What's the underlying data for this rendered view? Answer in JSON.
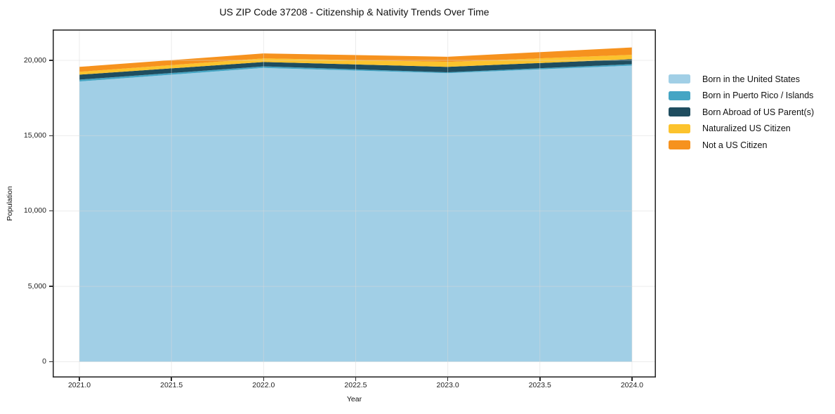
{
  "chart_data": {
    "type": "area",
    "stacked": true,
    "title": "US ZIP Code 37208 - Citizenship & Nativity Trends Over Time",
    "xlabel": "Year",
    "ylabel": "Population",
    "x": [
      2021,
      2022,
      2023,
      2024
    ],
    "series": [
      {
        "name": "Born in the United States",
        "color": "#a1cfe6",
        "values": [
          18600,
          19500,
          19150,
          19650
        ]
      },
      {
        "name": "Born in Puerto Rico / Islands",
        "color": "#45a5c4",
        "values": [
          120,
          100,
          60,
          100
        ]
      },
      {
        "name": "Born Abroad of US Parent(s)",
        "color": "#1f4d5f",
        "values": [
          330,
          290,
          360,
          330
        ]
      },
      {
        "name": "Naturalized US Citizen",
        "color": "#fcc32d",
        "values": [
          190,
          240,
          330,
          290
        ]
      },
      {
        "name": "Not a US Citizen",
        "color": "#f6921e",
        "values": [
          330,
          330,
          340,
          490
        ]
      }
    ],
    "xticks": [
      2021.0,
      2021.5,
      2022.0,
      2022.5,
      2023.0,
      2023.5,
      2024.0
    ],
    "xtick_labels": [
      "2021.0",
      "2021.5",
      "2022.0",
      "2022.5",
      "2023.0",
      "2023.5",
      "2024.0"
    ],
    "yticks": [
      0,
      5000,
      10000,
      15000,
      20000
    ],
    "ytick_labels": [
      "0",
      "5,000",
      "10,000",
      "15,000",
      "20,000"
    ],
    "xlim": [
      2020.855,
      2024.13
    ],
    "ylim": [
      -1050,
      22050
    ],
    "grid": true,
    "legend_position": "right-outside",
    "axis_color": "#2b2b2b",
    "grid_color": "#d9d9d9",
    "background": "#ffffff"
  }
}
